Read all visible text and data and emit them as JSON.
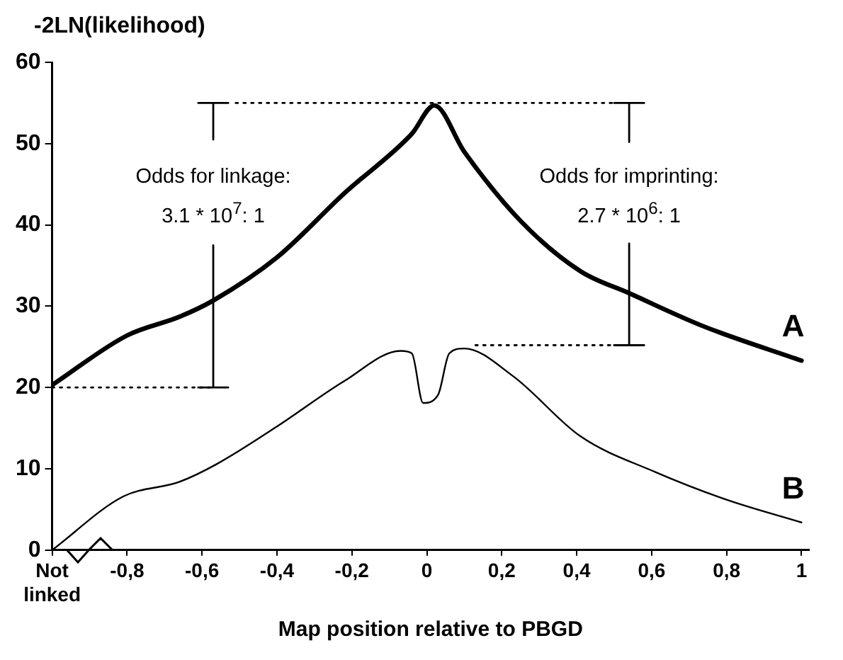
{
  "chart_data": {
    "type": "line",
    "ylabel": "-2LN(likelihood)",
    "xlabel": "Map position relative to PBGD",
    "xlim": [
      -1,
      1.02
    ],
    "xticks": [
      {
        "value": -1,
        "label": "Not\nlinked"
      },
      {
        "value": -0.8,
        "label": "-0,8"
      },
      {
        "value": -0.6,
        "label": "-0,6"
      },
      {
        "value": -0.4,
        "label": "-0,4"
      },
      {
        "value": -0.2,
        "label": "-0,2"
      },
      0,
      {
        "value": 0.2,
        "label": "0,2"
      },
      {
        "value": 0.4,
        "label": "0,4"
      },
      {
        "value": 0.6,
        "label": "0,6"
      },
      {
        "value": 0.8,
        "label": "0,8"
      },
      1
    ],
    "ylim": [
      0,
      60
    ],
    "yticks": [
      0,
      10,
      20,
      30,
      40,
      50,
      60
    ],
    "grid": false,
    "legend": false,
    "marker": "none",
    "annotations": [
      "Odds for linkage:\n3.1 * 10$^{7}$: 1",
      "Odds for imprinting:\n2.7 * 10$^{6}$: 1"
    ],
    "series": [
      {
        "name": "A",
        "color": "#000000",
        "x": [
          -1,
          -0.8,
          -0.66,
          -0.57,
          -0.4,
          -0.22,
          -0.04,
          0.02,
          0.1,
          0.25,
          0.41,
          0.54,
          0.74,
          1
        ],
        "values": [
          20.3,
          26.4,
          28.7,
          30.7,
          36,
          43.9,
          51.2,
          54.7,
          49,
          40.5,
          34.3,
          31.6,
          27.5,
          23.3
        ]
      },
      {
        "name": "B",
        "color": "#000000",
        "x": [
          -1,
          -0.81,
          -0.66,
          -0.56,
          -0.4,
          -0.22,
          -0.07,
          -0.04,
          -0.01,
          0.03,
          0.06,
          0.1,
          0.23,
          0.41,
          0.61,
          0.8,
          1
        ],
        "values": [
          0,
          6.6,
          8.4,
          10.6,
          15.2,
          20.8,
          24.5,
          24.2,
          18.1,
          19.1,
          24.2,
          24.8,
          21.4,
          14,
          9.6,
          6.2,
          3.4
        ]
      },
      {
        "color": "#000000",
        "x": [
          -0.61,
          -0.53,
          -0.57,
          -0.57
        ],
        "values": [
          55,
          55,
          55,
          50.5
        ]
      },
      {
        "color": "#000000",
        "x": [
          -0.57,
          -0.57,
          -0.61,
          -0.53
        ],
        "values": [
          37.5,
          20,
          20,
          20
        ]
      },
      {
        "color": "#000000",
        "x": [
          0.5,
          0.58,
          0.54,
          0.54
        ],
        "values": [
          55,
          55,
          55,
          50.2
        ]
      },
      {
        "color": "#000000",
        "x": [
          0.54,
          0.54,
          0.5,
          0.58
        ],
        "values": [
          37.7,
          25.2,
          25.2,
          25.2
        ]
      },
      {
        "color": "#000000",
        "line_style": "dotted",
        "x": [
          -1,
          -0.57
        ],
        "values": [
          20,
          20
        ]
      },
      {
        "color": "#000000",
        "line_style": "dotted",
        "x": [
          -0.51,
          0.5
        ],
        "values": [
          55,
          55
        ]
      },
      {
        "color": "#000000",
        "line_style": "dotted",
        "x": [
          0.13,
          0.5
        ],
        "values": [
          25.2,
          25.2
        ]
      }
    ]
  }
}
